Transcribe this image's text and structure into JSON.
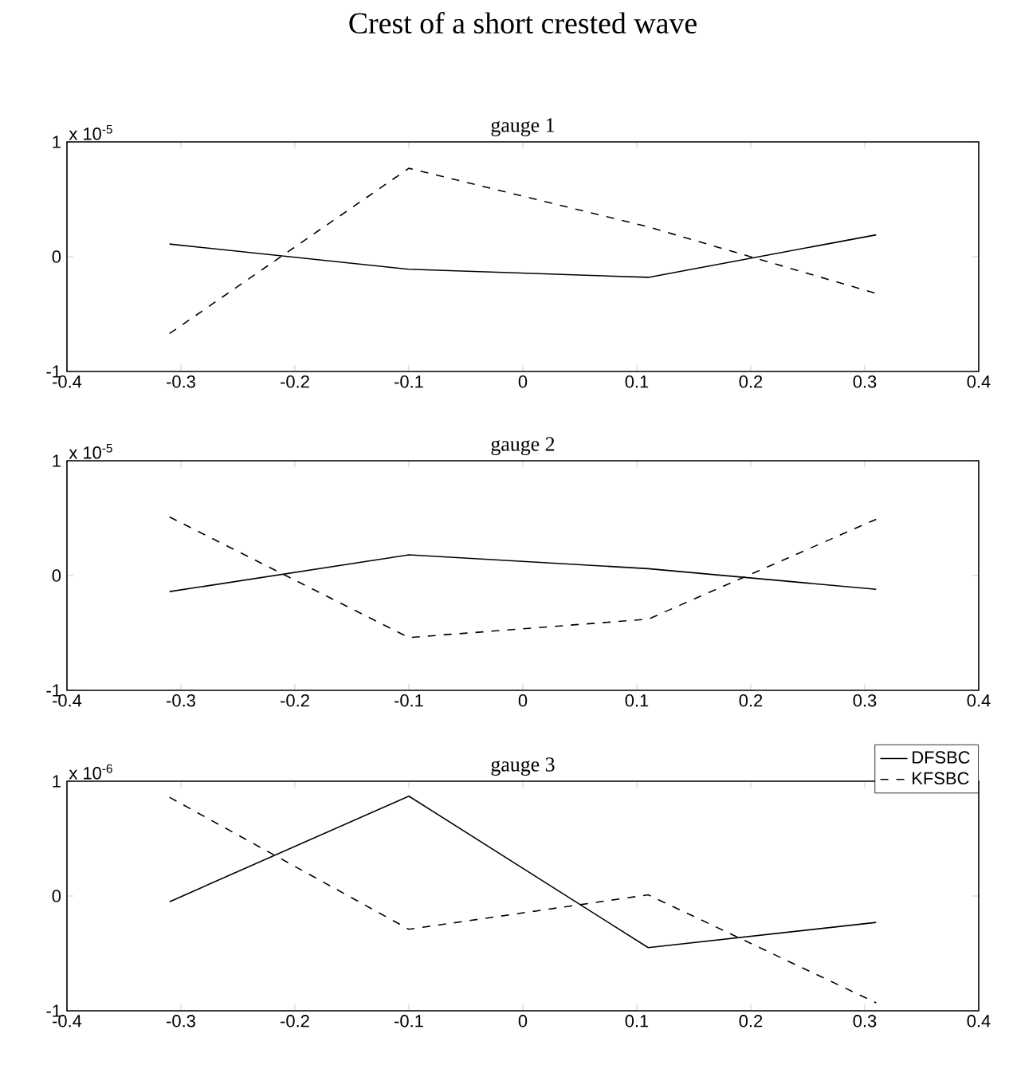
{
  "chart_data": [
    {
      "type": "line",
      "title": "Crest of a short crested wave",
      "subtitle": "gauge 1",
      "annotations": [
        "x 10$^{-5}$"
      ],
      "xlim": [
        -0.4,
        0.4
      ],
      "ylim": [
        -1,
        1
      ],
      "xticks": [
        -0.4,
        -0.3,
        -0.2,
        -0.1,
        0,
        0.1,
        0.2,
        0.3,
        0.4
      ],
      "yticks": [
        -1,
        0,
        1
      ],
      "x": [
        -0.31,
        -0.1,
        0.11,
        0.31
      ],
      "series": [
        {
          "color": "#000000",
          "line_style": "solid",
          "values": [
            0.11,
            -0.11,
            -0.18,
            0.19
          ]
        },
        {
          "color": "#000000",
          "line_style": "dashed",
          "values": [
            -0.67,
            0.77,
            0.26,
            -0.32
          ]
        }
      ]
    },
    {
      "type": "line",
      "subtitle": "gauge 2",
      "annotations": [
        "x 10$^{-5}$"
      ],
      "xlim": [
        -0.4,
        0.4
      ],
      "ylim": [
        -1,
        1
      ],
      "xticks": [
        -0.4,
        -0.3,
        -0.2,
        -0.1,
        0,
        0.1,
        0.2,
        0.3,
        0.4
      ],
      "yticks": [
        -1,
        0,
        1
      ],
      "x": [
        -0.31,
        -0.1,
        0.11,
        0.31
      ],
      "series": [
        {
          "color": "#000000",
          "line_style": "solid",
          "values": [
            -0.14,
            0.18,
            0.06,
            -0.12
          ]
        },
        {
          "color": "#000000",
          "line_style": "dashed",
          "values": [
            0.51,
            -0.54,
            -0.38,
            0.49
          ]
        }
      ]
    },
    {
      "type": "line",
      "subtitle": "gauge 3",
      "annotations": [
        "x 10$^{-6}$"
      ],
      "xlim": [
        -0.4,
        0.4
      ],
      "ylim": [
        -1,
        1
      ],
      "xticks": [
        -0.4,
        -0.3,
        -0.2,
        -0.1,
        0,
        0.1,
        0.2,
        0.3,
        0.4
      ],
      "yticks": [
        -1,
        0,
        1
      ],
      "x": [
        -0.31,
        -0.1,
        0.11,
        0.31
      ],
      "legend": "top right",
      "series": [
        {
          "name": "DFSBC",
          "color": "#000000",
          "line_style": "solid",
          "values": [
            -0.05,
            0.87,
            -0.45,
            -0.23
          ]
        },
        {
          "name": "KFSBC",
          "color": "#000000",
          "line_style": "dashed",
          "values": [
            0.86,
            -0.29,
            0.01,
            -0.93
          ]
        }
      ]
    }
  ]
}
